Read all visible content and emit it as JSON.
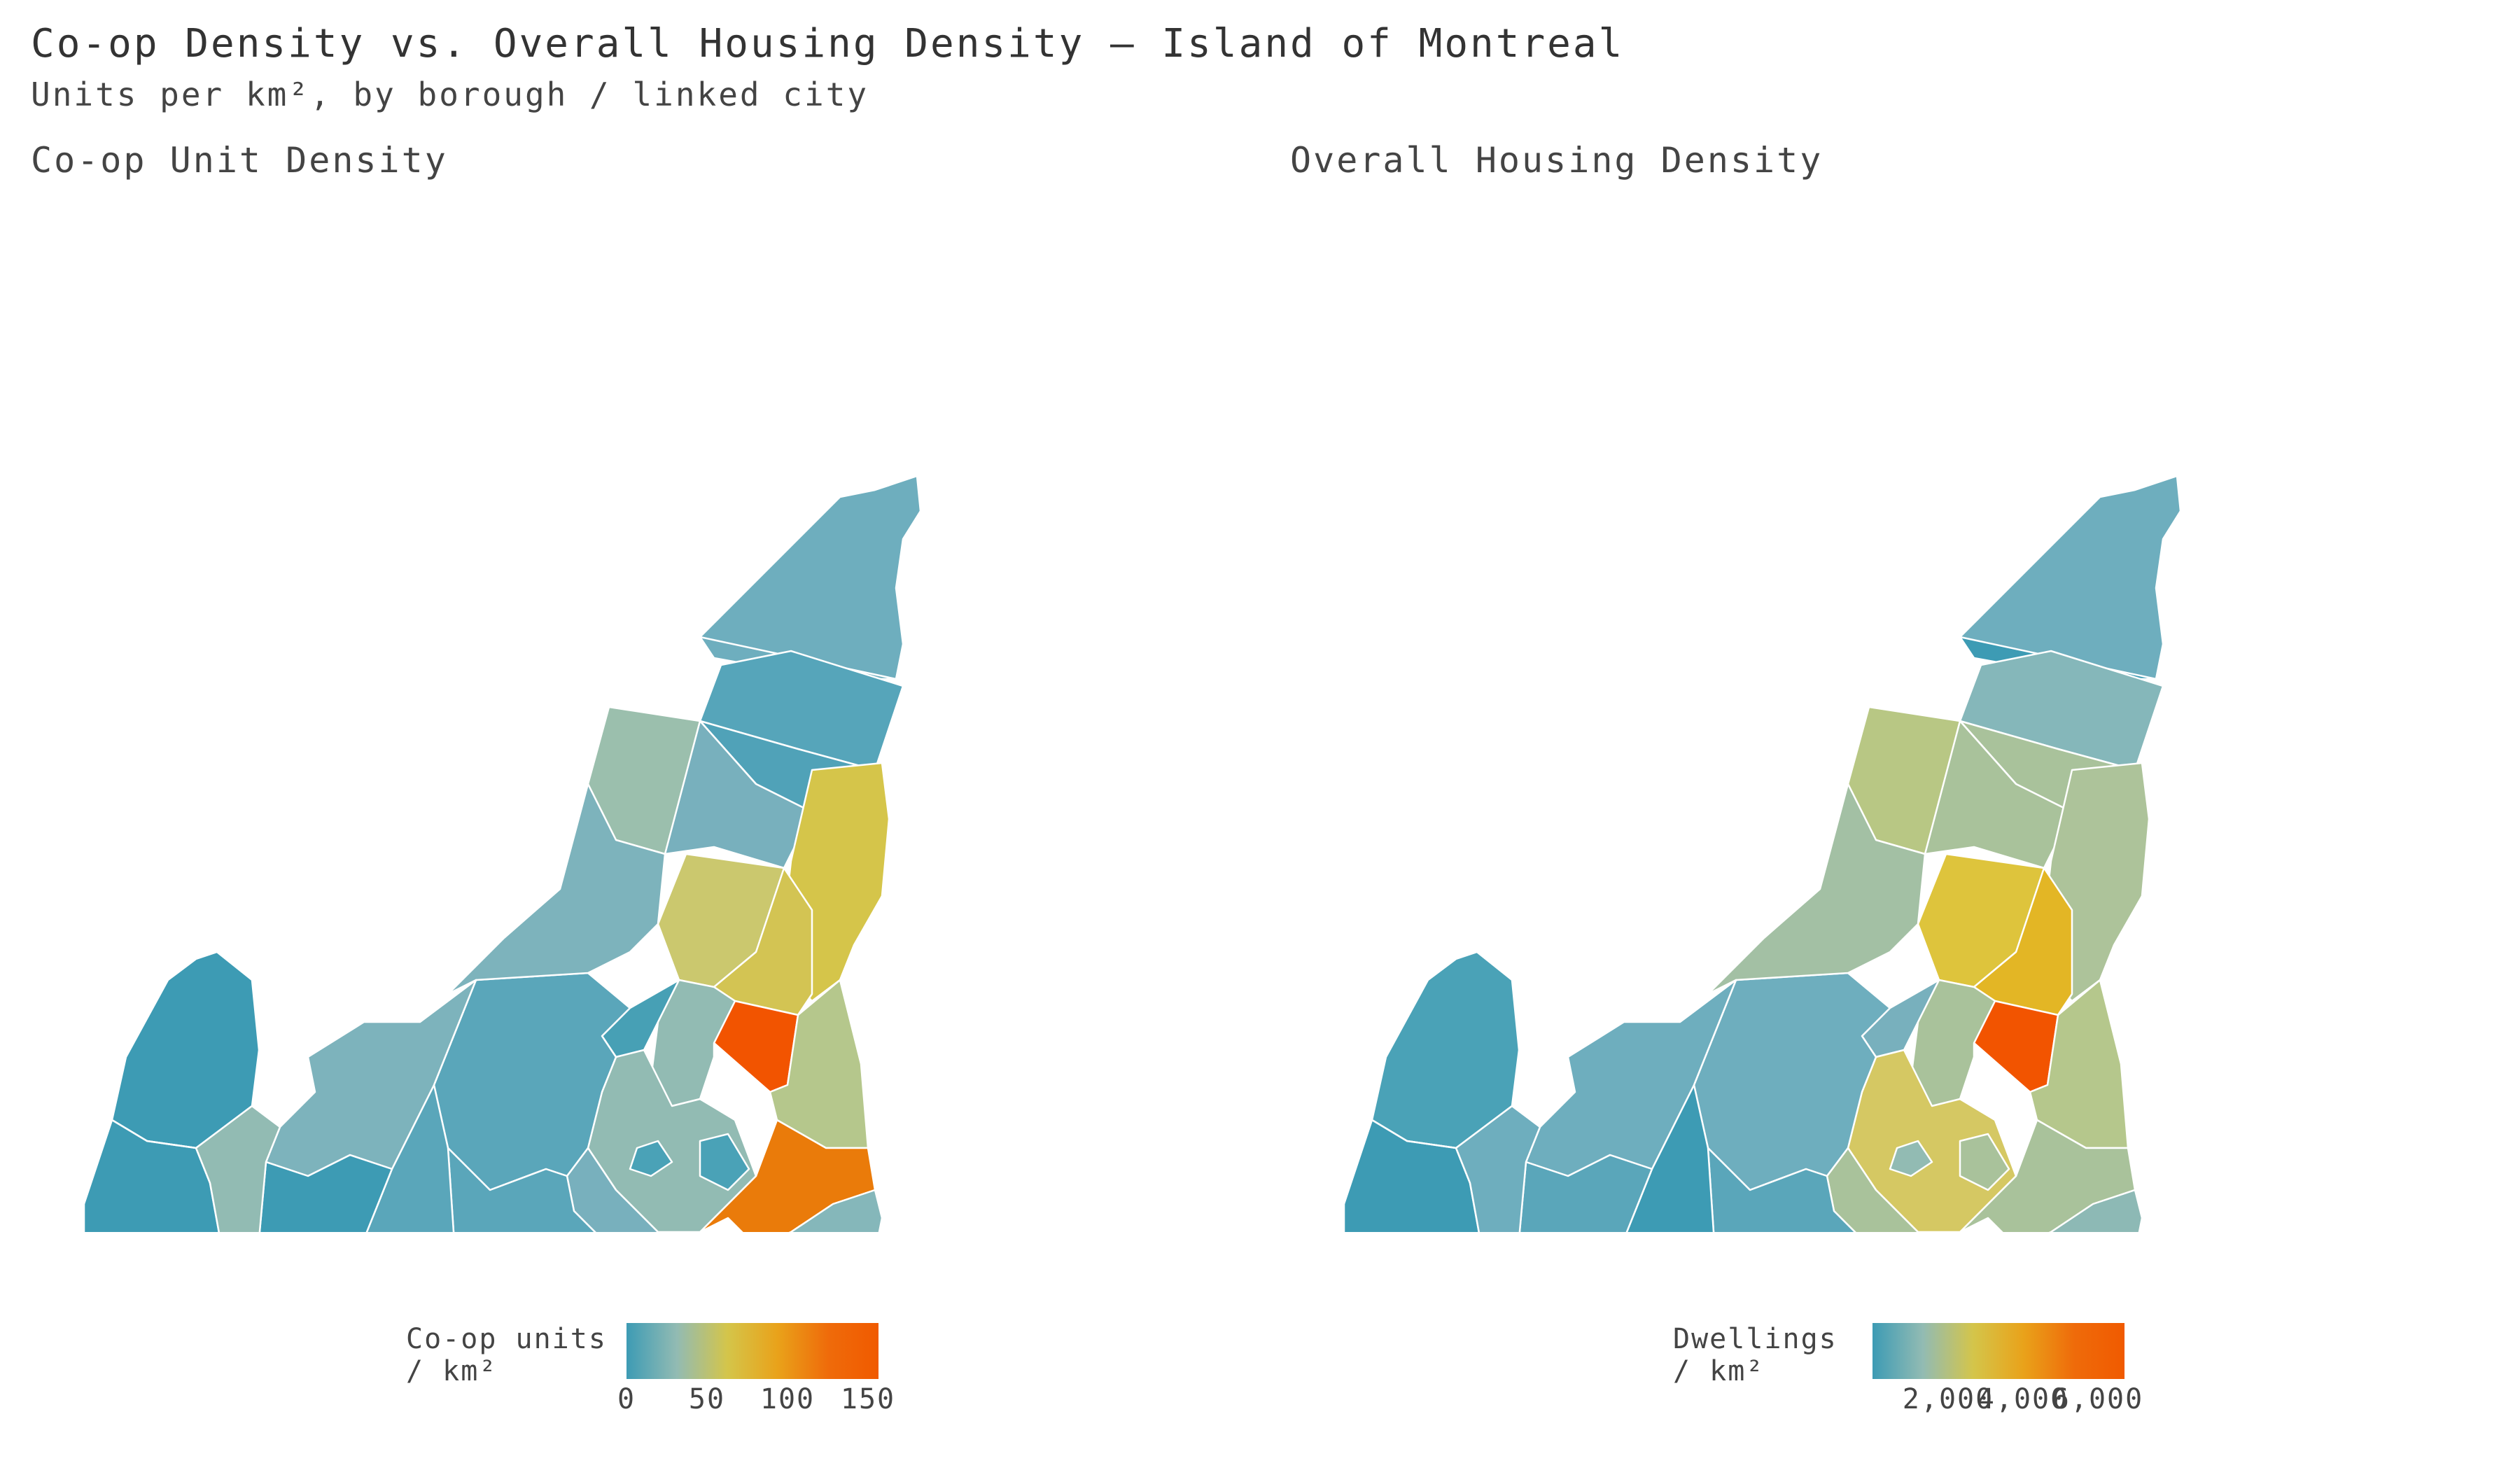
{
  "title": "Co-op Density vs. Overall Housing Density — Island of Montreal",
  "subtitle": "Units per km², by borough / linked city",
  "panels": {
    "left": {
      "title": "Co-op Unit Density",
      "legend": {
        "label_line1": "Co-op units",
        "label_line2": "/ km²",
        "ticks": [
          "0",
          "50",
          "100",
          "150"
        ],
        "range": [
          0,
          150
        ]
      }
    },
    "right": {
      "title": "Overall Housing Density",
      "legend": {
        "label_line1": "Dwellings",
        "label_line2": "/ km²",
        "ticks": [
          "2,000",
          "4,000",
          "6,000"
        ],
        "range": [
          0,
          6700
        ]
      }
    }
  },
  "colors": {
    "ramp": [
      "#3d9bb4",
      "#92bbb3",
      "#d4c54a",
      "#e9a21a",
      "#ef6b0a",
      "#f05a00"
    ],
    "border": "#ffffff"
  }
}
